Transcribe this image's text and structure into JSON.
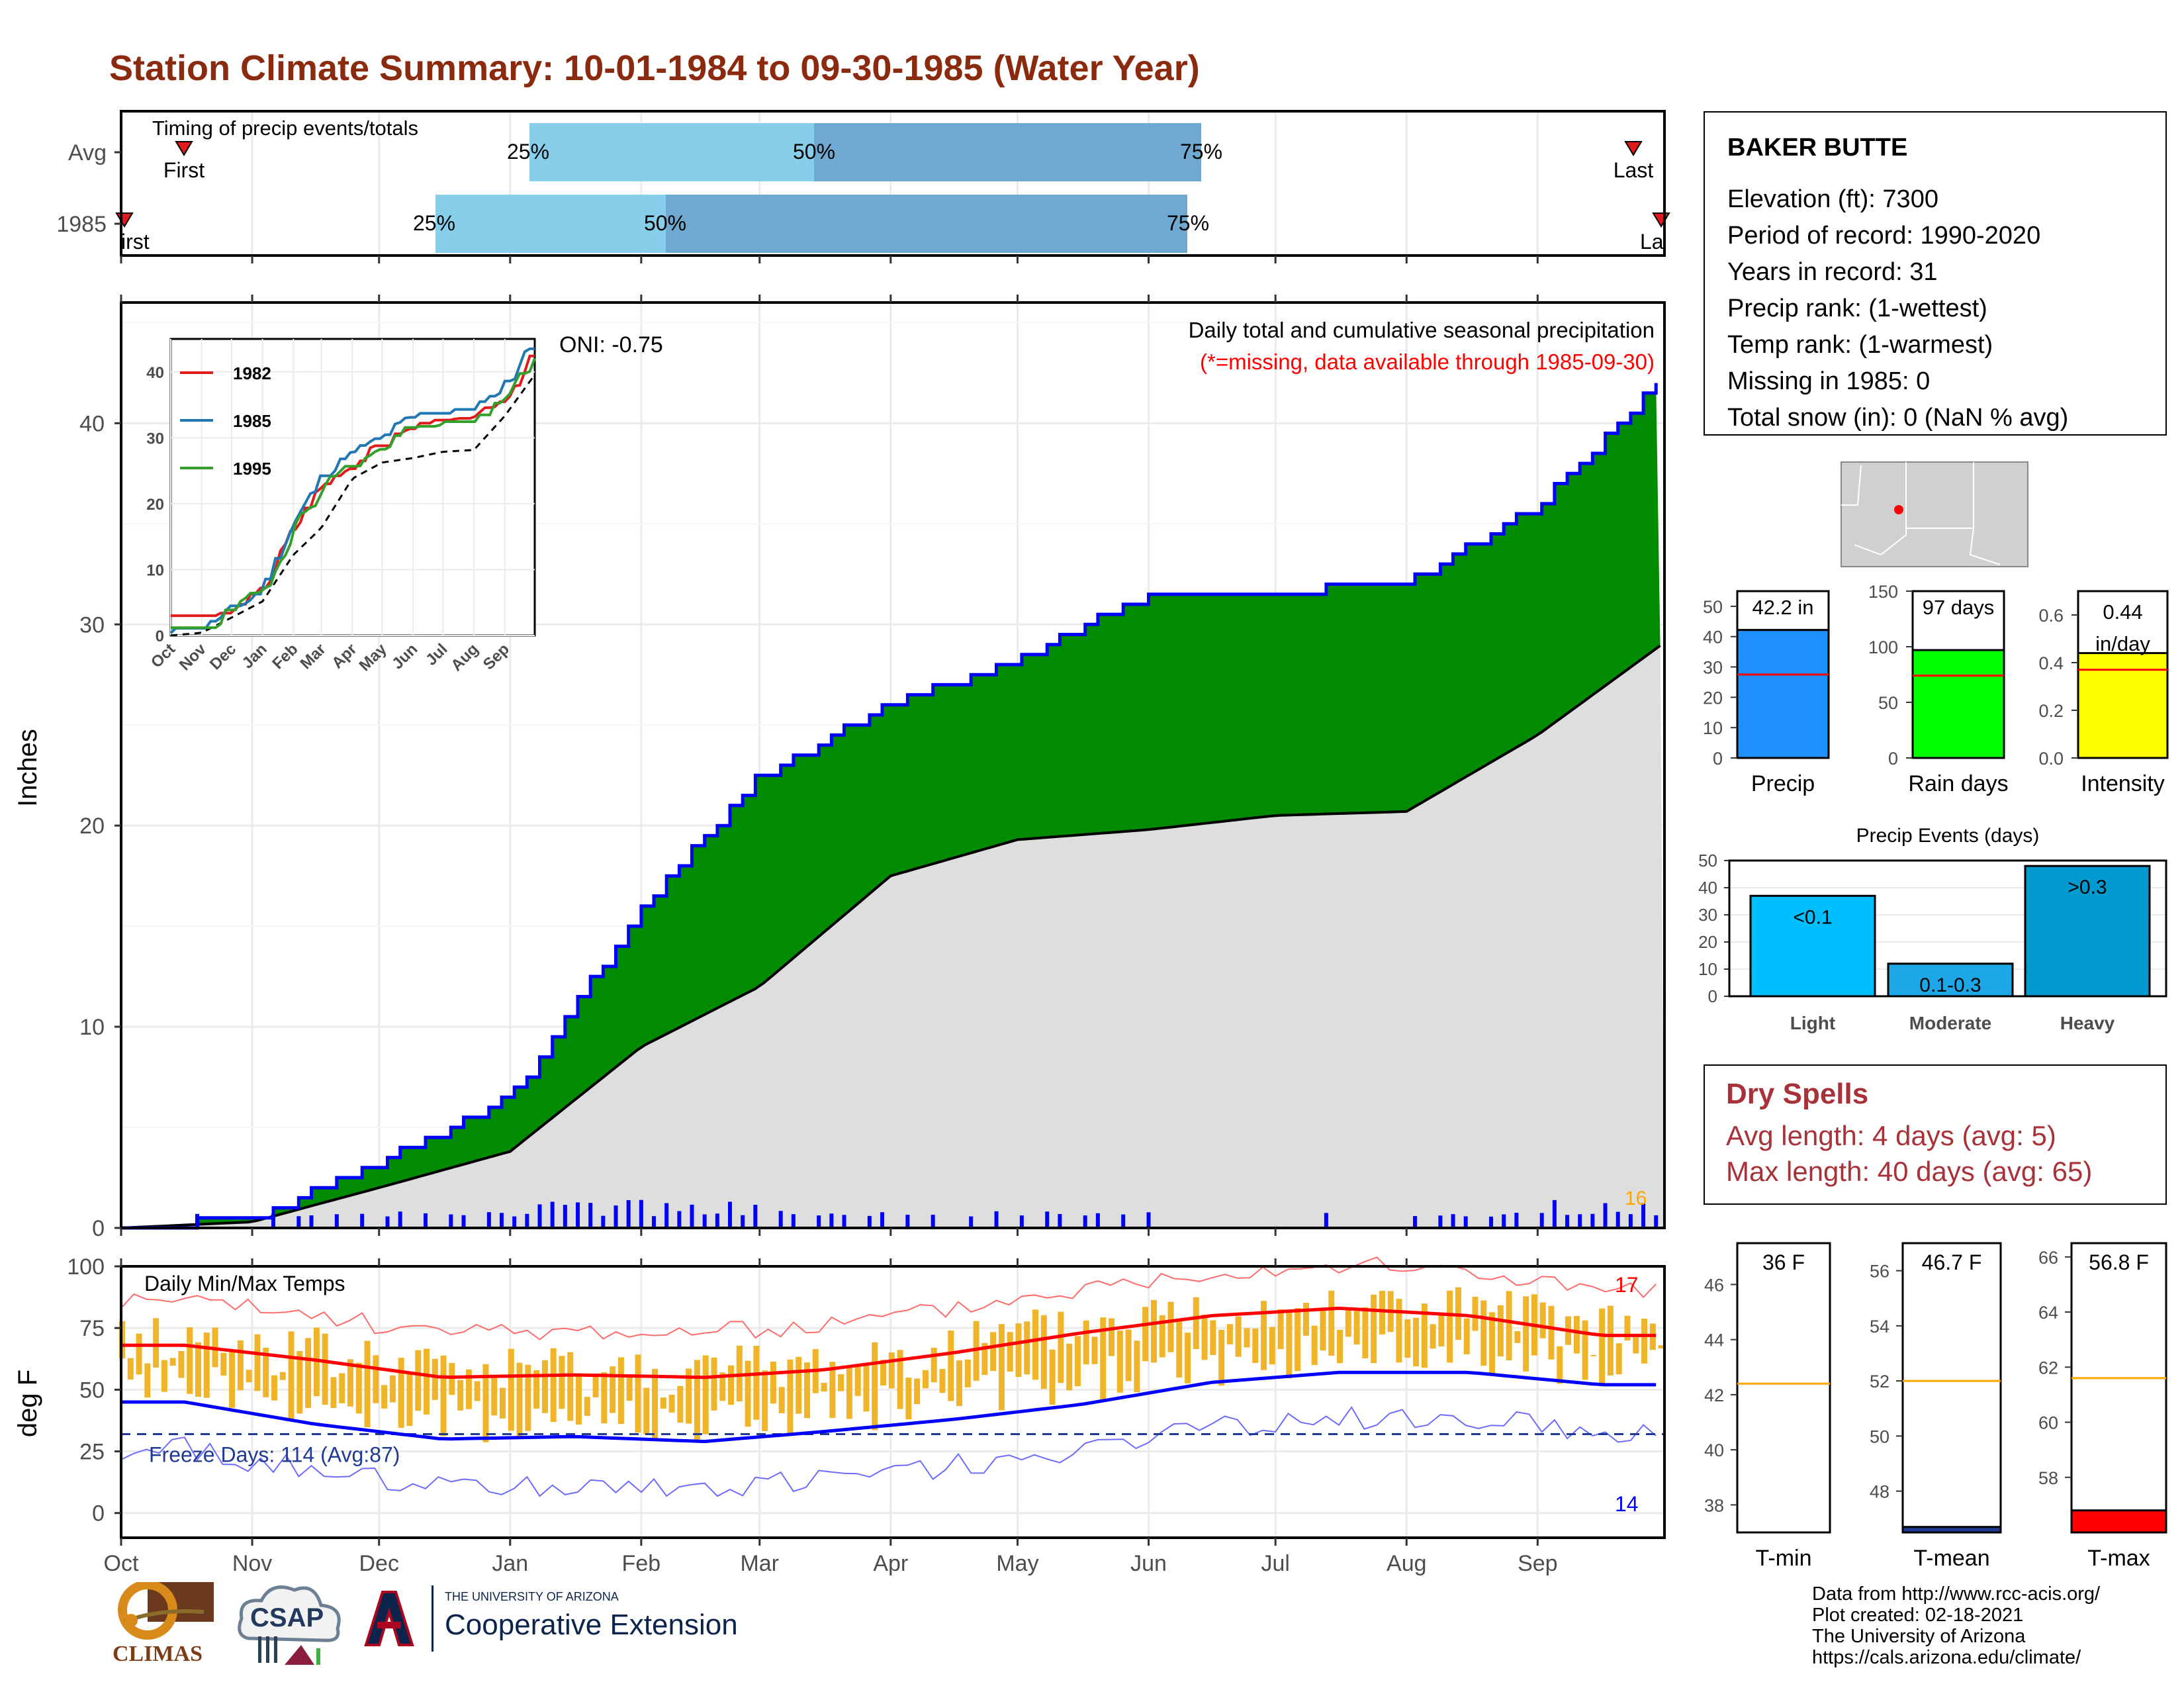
{
  "title": "Station Climate Summary: 10-01-1984 to 09-30-1985 (Water Year)",
  "timing_panel": {
    "title": "Timing of precip events/totals",
    "rows": [
      "Avg",
      "1985"
    ],
    "first_label": "First",
    "last_label": "Last",
    "pct_labels": [
      "25%",
      "50%",
      "75%"
    ]
  },
  "main_panel": {
    "ylabel": "Inches",
    "yticks": [
      "0",
      "10",
      "20",
      "30",
      "40"
    ],
    "months": [
      "Oct",
      "Nov",
      "Dec",
      "Jan",
      "Feb",
      "Mar",
      "Apr",
      "May",
      "Jun",
      "Jul",
      "Aug",
      "Sep"
    ],
    "oni": "ONI: -0.75",
    "subtitle": "Daily total and cumulative seasonal precipitation",
    "missing_note": "(*=missing, data available through 1985-09-30)",
    "max_daily_label": "16"
  },
  "inset": {
    "yticks": [
      "0",
      "10",
      "20",
      "30",
      "40"
    ],
    "months": [
      "Oct",
      "Nov",
      "Dec",
      "Jan",
      "Feb",
      "Mar",
      "Apr",
      "May",
      "Jun",
      "Jul",
      "Aug",
      "Sep"
    ],
    "legend": [
      {
        "name": "1982",
        "color": "#e31a1c"
      },
      {
        "name": "1985",
        "color": "#1f78b4"
      },
      {
        "name": "1995",
        "color": "#33a02c"
      }
    ]
  },
  "temp_panel": {
    "ylabel": "deg F",
    "title": "Daily Min/Max Temps",
    "yticks": [
      "0",
      "25",
      "50",
      "75",
      "100"
    ],
    "freeze_label": "Freeze Days: 114 (Avg:87)",
    "max_count": "17",
    "min_count": "14"
  },
  "station": {
    "name": "BAKER BUTTE",
    "lines": [
      "Elevation (ft): 7300",
      "Period of record: 1990-2020",
      "Years in record: 31",
      "Precip rank:  (1-wettest)",
      "Temp rank:  (1-warmest)",
      "Missing in 1985: 0",
      "Total snow (in): 0 (NaN % avg)"
    ]
  },
  "summary_bars": [
    {
      "label": "Precip",
      "value_label": "42.2 in",
      "value": 42.2,
      "avg": 27.5,
      "max": 55,
      "yticks": [
        "0",
        "10",
        "20",
        "30",
        "40",
        "50"
      ],
      "tickvals": [
        0,
        10,
        20,
        30,
        40,
        50
      ],
      "color": "#1e90ff"
    },
    {
      "label": "Rain days",
      "value_label": "97 days",
      "value": 97,
      "avg": 74,
      "max": 150,
      "yticks": [
        "0",
        "50",
        "100",
        "150"
      ],
      "tickvals": [
        0,
        50,
        100,
        150
      ],
      "color": "#00ff00"
    },
    {
      "label": "Intensity",
      "value_label": "0.44 in/day",
      "value": 0.44,
      "avg": 0.37,
      "max": 0.7,
      "yticks": [
        "0.0",
        "0.2",
        "0.4",
        "0.6"
      ],
      "tickvals": [
        0,
        0.2,
        0.4,
        0.6
      ],
      "color": "#ffff00"
    }
  ],
  "precip_events": {
    "title": "Precip Events (days)",
    "yticks": [
      "0",
      "10",
      "20",
      "30",
      "40",
      "50"
    ],
    "bars": [
      {
        "category": "Light",
        "label": "<0.1",
        "value": 37,
        "color": "#00bfff"
      },
      {
        "category": "Moderate",
        "label": "0.1-0.3",
        "value": 12,
        "color": "#1ea7e6"
      },
      {
        "category": "Heavy",
        "label": ">0.3",
        "value": 48,
        "color": "#009ad0"
      }
    ]
  },
  "dry_spells": {
    "title": "Dry Spells",
    "avg_line": "Avg length: 4 days (avg: 5)",
    "max_line": "Max length: 40 days (avg: 65)"
  },
  "temp_bars": [
    {
      "label": "T-min",
      "value_label": "36 F",
      "value": 36,
      "avg": 42.4,
      "ymin": 37,
      "ymax": 47.5,
      "yticks": [
        "38",
        "40",
        "42",
        "44",
        "46"
      ],
      "tickvals": [
        38,
        40,
        42,
        44,
        46
      ],
      "color": "#0000cd"
    },
    {
      "label": "T-mean",
      "value_label": "46.7 F",
      "value": 46.7,
      "avg": 52.0,
      "ymin": 46.5,
      "ymax": 57.0,
      "yticks": [
        "48",
        "50",
        "52",
        "54",
        "56"
      ],
      "tickvals": [
        48,
        50,
        52,
        54,
        56
      ],
      "color": "#1f3a93"
    },
    {
      "label": "T-max",
      "value_label": "56.8 F",
      "value": 56.8,
      "avg": 61.6,
      "ymin": 56.0,
      "ymax": 66.5,
      "yticks": [
        "58",
        "60",
        "62",
        "64",
        "66"
      ],
      "tickvals": [
        58,
        60,
        62,
        64,
        66
      ],
      "color": "#ff0000"
    }
  ],
  "credits": [
    "Data from http://www.rcc-acis.org/",
    "Plot created: 02-18-2021",
    "The University of Arizona",
    "https://cals.arizona.edu/climate/"
  ],
  "logos": {
    "climas": "CLIMAS",
    "csap": "CSAP",
    "ua_small": "THE UNIVERSITY OF ARIZONA",
    "ua_big": "Cooperative Extension"
  },
  "chart_data": [
    {
      "type": "area",
      "title": "Daily total and cumulative seasonal precipitation",
      "ylabel": "Inches",
      "ylim": [
        0,
        46
      ],
      "x": [
        "Oct",
        "Nov",
        "Dec",
        "Jan",
        "Feb",
        "Mar",
        "Apr",
        "May",
        "Jun",
        "Jul",
        "Aug",
        "Sep"
      ],
      "series": [
        {
          "values": [
            0.5,
            3.3,
            6.5,
            16.0,
            22.5,
            26.0,
            28.3,
            31.5,
            31.6,
            32.0,
            36.0,
            42.3
          ]
        },
        {
          "values": [
            0.3,
            2.0,
            3.8,
            9.0,
            12.0,
            17.5,
            19.3,
            19.8,
            20.5,
            20.7,
            24.5,
            29.1
          ]
        }
      ]
    },
    {
      "type": "bar",
      "title": "Daily Min/Max Temps",
      "ylabel": "deg F",
      "ylim": [
        -10,
        100
      ],
      "x": [
        "Oct",
        "Nov",
        "Dec",
        "Jan",
        "Feb",
        "Mar",
        "Apr",
        "May",
        "Jun",
        "Jul",
        "Aug",
        "Sep"
      ],
      "series": [
        {
          "values": [
            68,
            62,
            55,
            56,
            55,
            58,
            65,
            73,
            80,
            83,
            80,
            72
          ]
        },
        {
          "values": [
            45,
            36,
            30,
            31,
            29,
            33,
            38,
            44,
            53,
            57,
            57,
            52
          ]
        }
      ]
    }
  ]
}
